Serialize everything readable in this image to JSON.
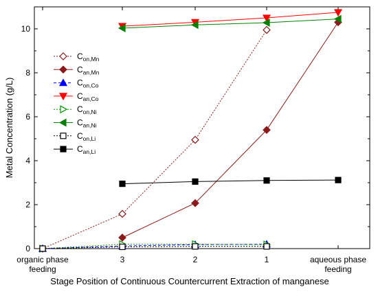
{
  "chart_data": {
    "type": "line",
    "xlabel": "Stage Position of Continuous Countercurrent Extraction of manganese",
    "ylabel": "Metal Concentration (g/L)",
    "categories": [
      [
        "organic phase",
        "feeding"
      ],
      [
        "3"
      ],
      [
        "2"
      ],
      [
        "1"
      ],
      [
        "aqueous phase",
        "feeding"
      ]
    ],
    "ylim": [
      0,
      11
    ],
    "yticks": [
      0,
      2,
      4,
      6,
      8,
      10
    ],
    "grid": false,
    "legend_position": "upper-left",
    "series": [
      {
        "name": "C",
        "sub": "on,Mn",
        "color": "#8b1a1a",
        "marker": "diamond",
        "filled": false,
        "dash": "dotted",
        "values": [
          0.0,
          1.58,
          4.95,
          9.95,
          null
        ]
      },
      {
        "name": "C",
        "sub": "an,Mn",
        "color": "#8b1a1a",
        "marker": "diamond",
        "filled": true,
        "dash": "solid",
        "values": [
          null,
          0.5,
          2.07,
          5.4,
          10.3
        ]
      },
      {
        "name": "C",
        "sub": "on,Co",
        "color": "#0000ff",
        "marker": "triangle-up",
        "filled": true,
        "dash": "dashed",
        "values": [
          0.0,
          0.12,
          0.18,
          0.2,
          null
        ]
      },
      {
        "name": "C",
        "sub": "an,Co",
        "color": "#ff0000",
        "marker": "triangle-down",
        "filled": true,
        "dash": "solid",
        "values": [
          null,
          10.12,
          10.3,
          10.5,
          10.75
        ]
      },
      {
        "name": "C",
        "sub": "on,Ni",
        "color": "#009900",
        "marker": "triangle-right",
        "filled": false,
        "dash": "dotted",
        "values": [
          0.0,
          0.2,
          0.2,
          0.18,
          null
        ]
      },
      {
        "name": "C",
        "sub": "an,Ni",
        "color": "#008000",
        "marker": "triangle-left",
        "filled": true,
        "dash": "solid",
        "values": [
          null,
          10.03,
          10.18,
          10.28,
          10.45
        ]
      },
      {
        "name": "C",
        "sub": "on,Li",
        "color": "#000000",
        "marker": "square",
        "filled": false,
        "dash": "dotted",
        "values": [
          0.0,
          0.08,
          0.1,
          0.1,
          null
        ]
      },
      {
        "name": "C",
        "sub": "an,Li",
        "color": "#000000",
        "marker": "square",
        "filled": true,
        "dash": "solid",
        "values": [
          null,
          2.95,
          3.05,
          3.1,
          3.12
        ]
      }
    ]
  }
}
